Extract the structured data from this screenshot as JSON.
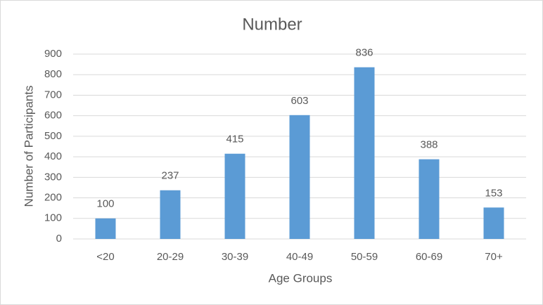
{
  "chart_data": {
    "type": "bar",
    "title": "Number",
    "x_label": "Age Groups",
    "y_label": "Number of Participants",
    "categories": [
      "<20",
      "20-29",
      "30-39",
      "40-49",
      "50-59",
      "60-69",
      "70+"
    ],
    "values": [
      100,
      237,
      415,
      603,
      836,
      388,
      153
    ],
    "color": "#5b9bd5",
    "ylim": [
      0,
      900
    ],
    "yticks": [
      0,
      100,
      200,
      300,
      400,
      500,
      600,
      700,
      800,
      900
    ],
    "grid": true
  }
}
